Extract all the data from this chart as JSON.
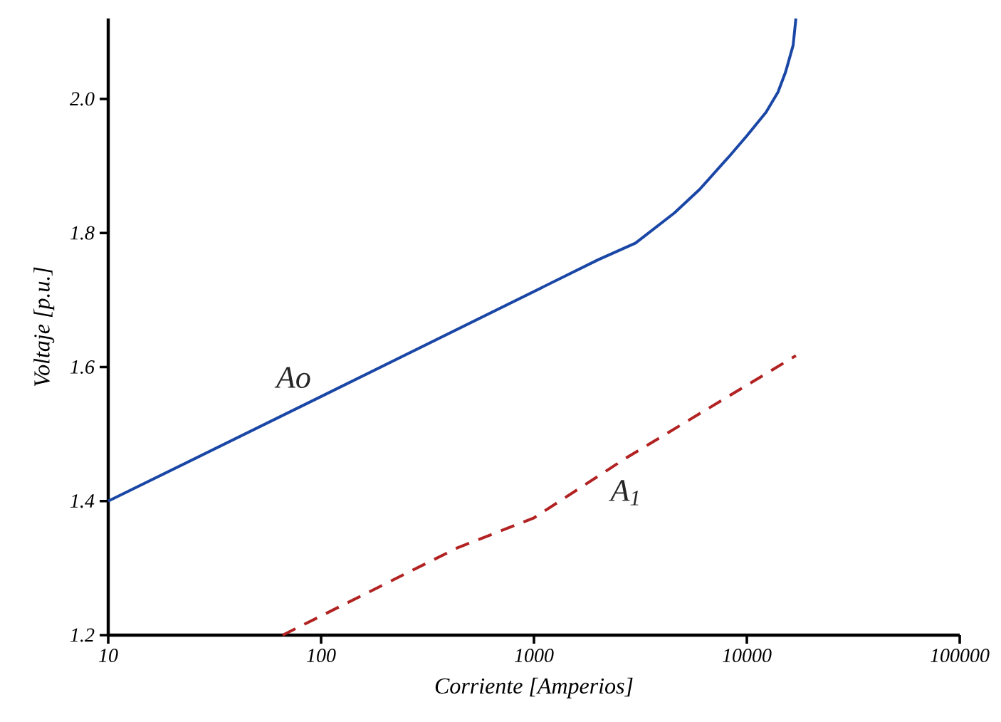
{
  "chart_data": {
    "type": "line",
    "xlabel": "Corriente [Amperios]",
    "ylabel": "Voltaje [p.u.]",
    "log": "x",
    "xlim": [
      10,
      100000
    ],
    "ylim": [
      1.2,
      2.12
    ],
    "xticks": [
      10,
      100,
      1000,
      10000,
      100000
    ],
    "yticks": [
      {
        "value": 1.2,
        "label": "1.2"
      },
      {
        "value": 1.4,
        "label": "1.4"
      },
      {
        "value": 1.6,
        "label": "1.6"
      },
      {
        "value": 1.8,
        "label": "1.8"
      },
      {
        "value": 2.0,
        "label": "2.0"
      }
    ],
    "grid": false,
    "series": [
      {
        "name": "Ao",
        "color": "#1a47a6",
        "line_style": "solid",
        "x": [
          10,
          100,
          2000,
          3000,
          4570,
          6000,
          8300,
          10000,
          12300,
          14000,
          15200,
          16500,
          17000
        ],
        "values": [
          1.4,
          1.556,
          1.76,
          1.785,
          1.83,
          1.865,
          1.915,
          1.945,
          1.98,
          2.01,
          2.04,
          2.08,
          2.12
        ]
      },
      {
        "name": "A$_{1}$",
        "color": "#b22222",
        "line_style": "dashed",
        "x": [
          66,
          435,
          1000,
          2700,
          17000
        ],
        "values": [
          1.2,
          1.33,
          1.375,
          1.464,
          1.617
        ]
      }
    ]
  }
}
